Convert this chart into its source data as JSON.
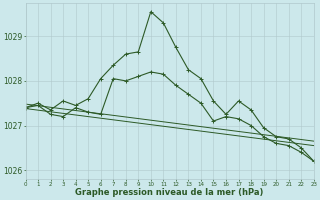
{
  "hours": [
    0,
    1,
    2,
    3,
    4,
    5,
    6,
    7,
    8,
    9,
    10,
    11,
    12,
    13,
    14,
    15,
    16,
    17,
    18,
    19,
    20,
    21,
    22,
    23
  ],
  "line1": [
    1027.4,
    1027.5,
    1027.35,
    1027.55,
    1027.45,
    1027.6,
    1028.05,
    1028.35,
    1028.6,
    1028.65,
    1029.55,
    1029.3,
    1028.75,
    1028.25,
    1028.05,
    1027.55,
    1027.25,
    1027.55,
    1027.35,
    1026.95,
    1026.75,
    1026.7,
    1026.5,
    1026.2
  ],
  "line2": [
    1027.4,
    1027.45,
    1027.25,
    1027.2,
    1027.4,
    1027.3,
    1027.25,
    1028.05,
    1028.0,
    1028.1,
    1028.2,
    1028.15,
    1027.9,
    1027.7,
    1027.5,
    1027.1,
    1027.2,
    1027.15,
    1027.0,
    1026.75,
    1026.6,
    1026.55,
    1026.4,
    1026.2
  ],
  "trend1_x": [
    0,
    23
  ],
  "trend1_y": [
    1027.38,
    1026.55
  ],
  "trend2_x": [
    0,
    23
  ],
  "trend2_y": [
    1027.48,
    1026.65
  ],
  "bg_color": "#cce8eb",
  "grid_color": "#b0c8cc",
  "line_color": "#2d5a27",
  "xlabel": "Graphe pression niveau de la mer (hPa)",
  "yticks": [
    1026,
    1027,
    1028,
    1029
  ],
  "xticks": [
    0,
    1,
    2,
    3,
    4,
    5,
    6,
    7,
    8,
    9,
    10,
    11,
    12,
    13,
    14,
    15,
    16,
    17,
    18,
    19,
    20,
    21,
    22,
    23
  ],
  "xlim": [
    0,
    23
  ],
  "ylim": [
    1025.8,
    1029.75
  ]
}
